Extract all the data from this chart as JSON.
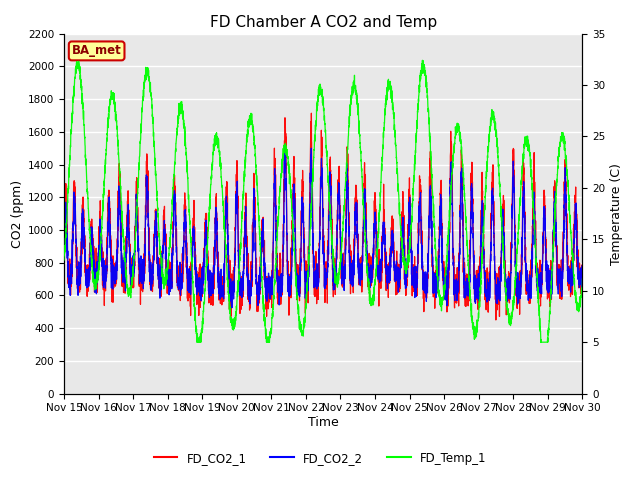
{
  "title": "FD Chamber A CO2 and Temp",
  "xlabel": "Time",
  "ylabel_left": "CO2 (ppm)",
  "ylabel_right": "Temperature (C)",
  "ylim_left": [
    0,
    2200
  ],
  "ylim_right": [
    0,
    35
  ],
  "yticks_left": [
    0,
    200,
    400,
    600,
    800,
    1000,
    1200,
    1400,
    1600,
    1800,
    2000,
    2200
  ],
  "yticks_right": [
    0,
    5,
    10,
    15,
    20,
    25,
    30,
    35
  ],
  "xtick_labels": [
    "Nov 15",
    "Nov 16",
    "Nov 17",
    "Nov 18",
    "Nov 19",
    "Nov 20",
    "Nov 21",
    "Nov 22",
    "Nov 23",
    "Nov 24",
    "Nov 25",
    "Nov 26",
    "Nov 27",
    "Nov 28",
    "Nov 29",
    "Nov 30"
  ],
  "annotation_text": "BA_met",
  "annotation_color": "#8B0000",
  "annotation_bg": "#ffff99",
  "annotation_edge": "#cc0000",
  "line_colors": {
    "FD_CO2_1": "red",
    "FD_CO2_2": "blue",
    "FD_Temp_1": "lime"
  },
  "legend_labels": [
    "FD_CO2_1",
    "FD_CO2_2",
    "FD_Temp_1"
  ],
  "plot_bg_color": "#e8e8e8",
  "grid_color": "#ffffff",
  "title_fontsize": 11,
  "axis_fontsize": 9,
  "tick_fontsize": 7.5
}
